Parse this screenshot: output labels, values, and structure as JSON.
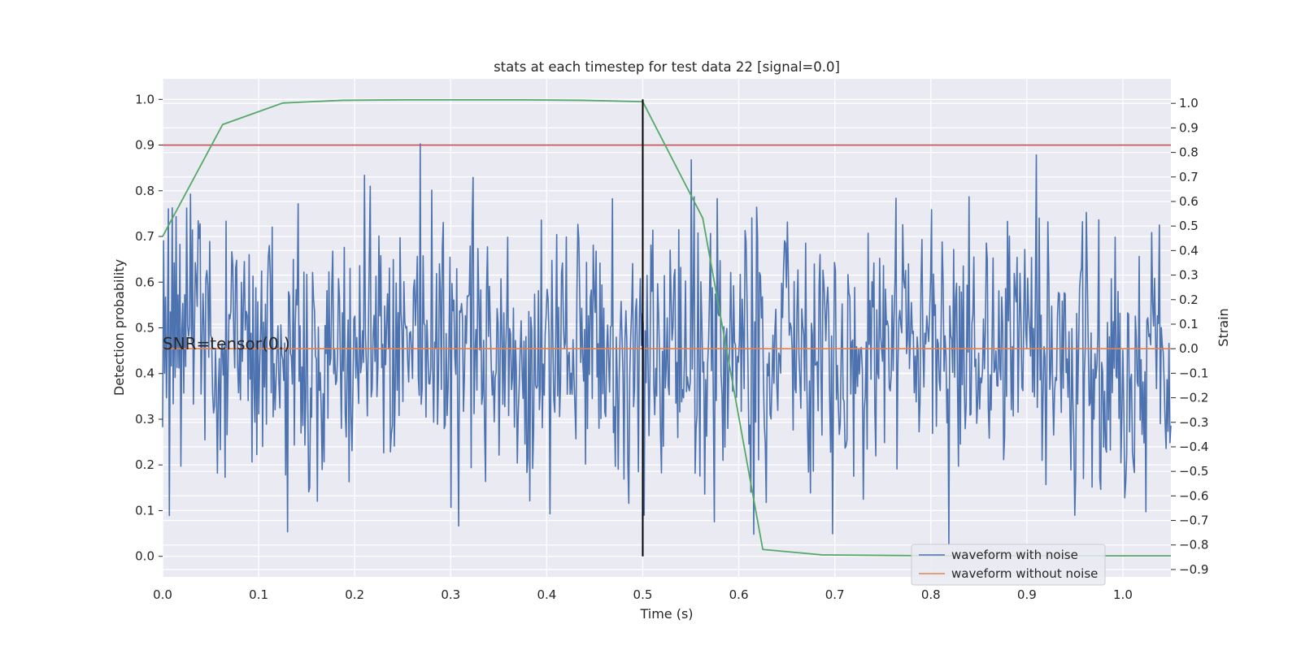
{
  "chart_data": {
    "type": "line",
    "title": "stats at each timestep for test data 22 [signal=0.0]",
    "xlabel": "Time (s)",
    "ylabel_left": "Detection probability",
    "ylabel_right": "Strain",
    "xlim": [
      0.0,
      1.05
    ],
    "ylim_left": [
      -0.045,
      1.045
    ],
    "ylim_right": [
      -0.93,
      1.1
    ],
    "x_ticks": [
      0.0,
      0.1,
      0.2,
      0.3,
      0.4,
      0.5,
      0.6,
      0.7,
      0.8,
      0.9,
      1.0
    ],
    "x_tick_labels": [
      "0.0",
      "0.1",
      "0.2",
      "0.3",
      "0.4",
      "0.5",
      "0.6",
      "0.7",
      "0.8",
      "0.9",
      "1.0"
    ],
    "y_left_ticks": [
      0.0,
      0.1,
      0.2,
      0.3,
      0.4,
      0.5,
      0.6,
      0.7,
      0.8,
      0.9,
      1.0
    ],
    "y_left_tick_labels": [
      "0.0",
      "0.1",
      "0.2",
      "0.3",
      "0.4",
      "0.5",
      "0.6",
      "0.7",
      "0.8",
      "0.9",
      "1.0"
    ],
    "y_right_ticks": [
      1.0,
      0.9,
      0.8,
      0.7,
      0.6,
      0.5,
      0.4,
      0.3,
      0.2,
      0.1,
      0.0,
      -0.1,
      -0.2,
      -0.3,
      -0.4,
      -0.5,
      -0.6,
      -0.7,
      -0.8,
      -0.9
    ],
    "y_right_tick_labels": [
      "1.0",
      "0.9",
      "0.8",
      "0.7",
      "0.6",
      "0.5",
      "0.4",
      "0.3",
      "0.2",
      "0.1",
      "0.0",
      "−0.1",
      "−0.2",
      "−0.3",
      "−0.4",
      "−0.5",
      "−0.6",
      "−0.7",
      "−0.8",
      "−0.9"
    ],
    "grid": true,
    "legend_position": "lower-right",
    "annotation": "SNR=tensor(0.)",
    "threshold_y": 0.9,
    "marker_x": 0.5,
    "marker_y_range": [
      0.0,
      1.0
    ],
    "noise_sample_count": 1050,
    "noise_seed": 22,
    "series": [
      {
        "name": "waveform with noise",
        "axis": "right",
        "color": "#4c72b0",
        "style": "noisy strain, roughly zero-mean, amplitude about 0.3",
        "sample_strain": [
          -0.32,
          0.44,
          -0.1,
          0.21,
          -0.2,
          0.08,
          0.57,
          -0.68,
          0.15,
          -0.07
        ]
      },
      {
        "name": "waveform without noise",
        "axis": "right",
        "color": "#dd8452",
        "x": [
          0.0,
          1.05
        ],
        "y": [
          0.0,
          0.0
        ]
      },
      {
        "axis": "left",
        "color": "#55a868",
        "x": [
          0.0,
          0.0625,
          0.125,
          0.1875,
          0.25,
          0.3125,
          0.375,
          0.4375,
          0.5,
          0.5625,
          0.625,
          0.6875,
          0.75,
          0.8125,
          0.875,
          0.9375,
          1.0,
          1.05
        ],
        "y": [
          0.7,
          0.945,
          0.992,
          0.998,
          0.999,
          0.999,
          0.999,
          0.998,
          0.995,
          0.74,
          0.015,
          0.003,
          0.002,
          0.001,
          0.001,
          0.001,
          0.001,
          0.001
        ]
      }
    ]
  },
  "colors": {
    "background": "#ffffff",
    "plot_area": "#eaeaf2",
    "grid": "#ffffff",
    "threshold": "#c44e52",
    "marker": "#000000"
  }
}
